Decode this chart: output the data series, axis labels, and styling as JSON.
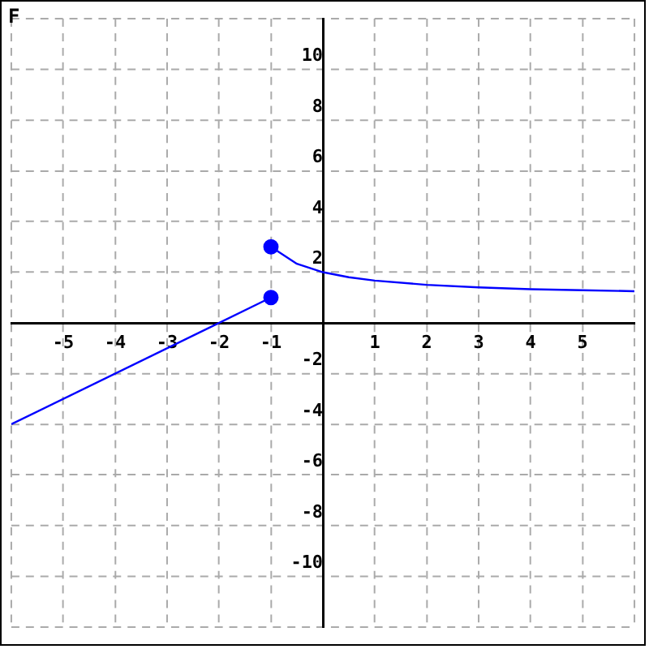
{
  "chart_data": {
    "type": "line",
    "title": "F",
    "xlim": [
      -6,
      6
    ],
    "ylim": [
      -12,
      12
    ],
    "xticks": [
      {
        "value": -6,
        "label": null
      },
      -5,
      -4,
      -3,
      -2,
      -1,
      {
        "value": 0,
        "label": null
      },
      1,
      2,
      3,
      4,
      5,
      {
        "value": 6,
        "label": null
      }
    ],
    "yticks": [
      {
        "value": -12,
        "label": null
      },
      -10,
      -8,
      -6,
      -4,
      -2,
      {
        "value": 0,
        "label": null
      },
      2,
      4,
      6,
      8,
      10,
      {
        "value": 12,
        "label": null
      }
    ],
    "grid": true,
    "legend": false,
    "line_style": "solid",
    "series": [
      {
        "color": "#0000ff",
        "marker": "none",
        "x": [
          -6,
          -1
        ],
        "values": [
          -4,
          1
        ]
      },
      {
        "color": "#0000ff",
        "marker": "none",
        "x": [
          -1,
          -0.5,
          0,
          0.5,
          1,
          2,
          3,
          4,
          5,
          6
        ],
        "values": [
          3,
          2.33,
          2,
          1.8,
          1.67,
          1.5,
          1.4,
          1.33,
          1.29,
          1.25
        ]
      },
      {
        "type": "scatter",
        "color": "#0000ff",
        "marker": "circle",
        "x": [
          -1
        ],
        "values": [
          1
        ]
      },
      {
        "type": "scatter",
        "color": "#0000ff",
        "marker": "circle",
        "x": [
          -1
        ],
        "values": [
          3
        ]
      }
    ]
  }
}
